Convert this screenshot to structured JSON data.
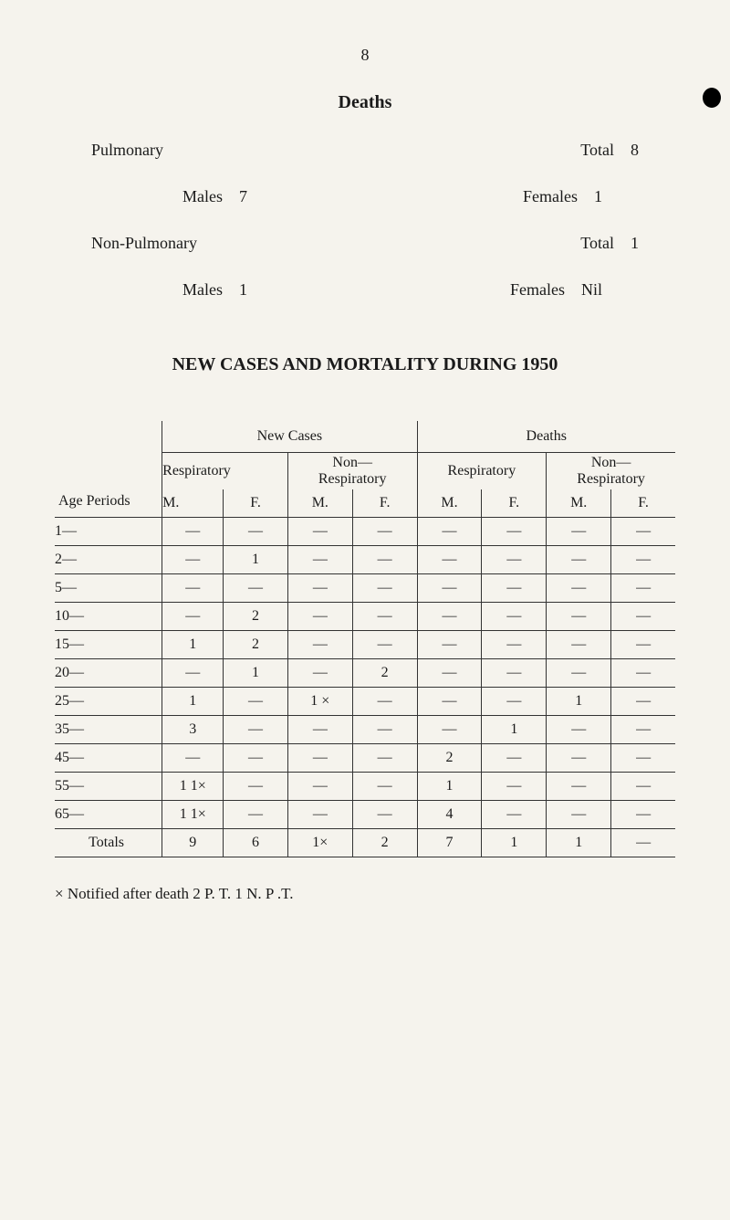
{
  "page_number": "8",
  "title_deaths": "Deaths",
  "summary": {
    "pulmonary": {
      "label": "Pulmonary",
      "total_label": "Total",
      "total_value": "8",
      "males_label": "Males",
      "males_value": "7",
      "females_label": "Females",
      "females_value": "1"
    },
    "non_pulmonary": {
      "label": "Non-Pulmonary",
      "total_label": "Total",
      "total_value": "1",
      "males_label": "Males",
      "males_value": "1",
      "females_label": "Females",
      "females_value": "Nil"
    }
  },
  "section_title": "NEW CASES AND MORTALITY DURING 1950",
  "table": {
    "headers": {
      "age_periods": "Age Periods",
      "new_cases": "New Cases",
      "deaths": "Deaths",
      "respiratory": "Respiratory",
      "non_respiratory_1": "Non—",
      "non_respiratory_2": "Respiratory",
      "m": "M.",
      "f": "F."
    },
    "rows": [
      {
        "age": "1—",
        "c": [
          "—",
          "—",
          "—",
          "—",
          "—",
          "—",
          "—",
          "—"
        ]
      },
      {
        "age": "2—",
        "c": [
          "—",
          "1",
          "—",
          "—",
          "—",
          "—",
          "—",
          "—"
        ]
      },
      {
        "age": "5—",
        "c": [
          "—",
          "—",
          "—",
          "—",
          "—",
          "—",
          "—",
          "—"
        ]
      },
      {
        "age": "10—",
        "c": [
          "—",
          "2",
          "—",
          "—",
          "—",
          "—",
          "—",
          "—"
        ]
      },
      {
        "age": "15—",
        "c": [
          "1",
          "2",
          "—",
          "—",
          "—",
          "—",
          "—",
          "—"
        ]
      },
      {
        "age": "20—",
        "c": [
          "—",
          "1",
          "—",
          "2",
          "—",
          "—",
          "—",
          "—"
        ]
      },
      {
        "age": "25—",
        "c": [
          "1",
          "—",
          "1 ×",
          "—",
          "—",
          "—",
          "1",
          "—"
        ]
      },
      {
        "age": "35—",
        "c": [
          "3",
          "—",
          "—",
          "—",
          "—",
          "1",
          "—",
          "—"
        ]
      },
      {
        "age": "45—",
        "c": [
          "—",
          "—",
          "—",
          "—",
          "2",
          "—",
          "—",
          "—"
        ]
      },
      {
        "age": "55—",
        "c": [
          "1 1×",
          "—",
          "—",
          "—",
          "1",
          "—",
          "—",
          "—"
        ]
      },
      {
        "age": "65—",
        "c": [
          "1 1×",
          "—",
          "—",
          "—",
          "4",
          "—",
          "—",
          "—"
        ]
      }
    ],
    "totals": {
      "label": "Totals",
      "c": [
        "9",
        "6",
        "1×",
        "2",
        "7",
        "1",
        "1",
        "—"
      ]
    }
  },
  "footnote": "× Notified after death 2 P. T.   1 N. P .T.",
  "colors": {
    "text": "#1a1a1a",
    "bg": "#f5f3ed",
    "border": "#333333"
  }
}
